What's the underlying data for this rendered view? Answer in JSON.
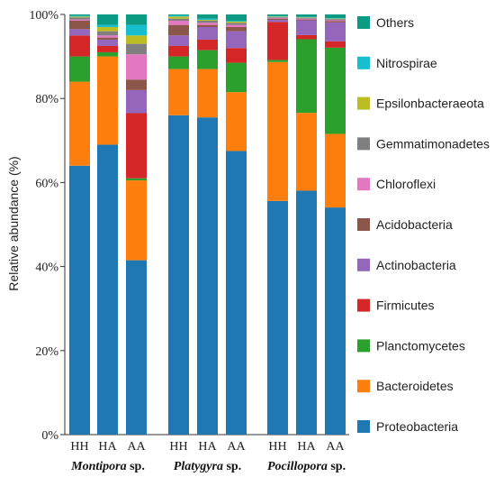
{
  "chart_data": {
    "type": "bar",
    "stacked": true,
    "ylabel": "Relative abundance (%)",
    "ylim": [
      0,
      100
    ],
    "yticks": [
      "0%",
      "20%",
      "40%",
      "60%",
      "80%",
      "100%"
    ],
    "groups": [
      {
        "name_italic": "Montipora",
        "suffix": " sp.",
        "categories": [
          "HH",
          "HA",
          "AA"
        ]
      },
      {
        "name_italic": "Platygyra",
        "suffix": " sp.",
        "categories": [
          "HH",
          "HA",
          "AA"
        ]
      },
      {
        "name_italic": "Pocillopora",
        "suffix": " sp.",
        "categories": [
          "HH",
          "HA",
          "AA"
        ]
      }
    ],
    "series": [
      {
        "name": "Proteobacteria",
        "color": "#1f77b4",
        "values": [
          64,
          69,
          41.5,
          76,
          75.5,
          67.5,
          55.5,
          58,
          54
        ]
      },
      {
        "name": "Bacteroidetes",
        "color": "#ff7f0e",
        "values": [
          20,
          21,
          19,
          11,
          11.5,
          14,
          33,
          18.5,
          17.5
        ]
      },
      {
        "name": "Planctomycetes",
        "color": "#2ca02c",
        "values": [
          6,
          1,
          0.5,
          3,
          4.5,
          7,
          0.5,
          17.5,
          20.5
        ]
      },
      {
        "name": "Firmicutes",
        "color": "#d62728",
        "values": [
          5,
          1.5,
          15.5,
          2.5,
          2.5,
          3.5,
          9,
          1,
          1.5
        ]
      },
      {
        "name": "Actinobacteria",
        "color": "#9467bd",
        "values": [
          1.5,
          1.5,
          5.5,
          2.5,
          3,
          4,
          0.5,
          3.5,
          4.5
        ]
      },
      {
        "name": "Acidobacteria",
        "color": "#8c564b",
        "values": [
          2,
          0.5,
          2.5,
          2.5,
          0.5,
          1,
          0.3,
          0.2,
          0.3
        ]
      },
      {
        "name": "Chloroflexi",
        "color": "#e377c2",
        "values": [
          0.3,
          0.5,
          6,
          1,
          0.5,
          0.5,
          0.2,
          0.2,
          0.2
        ]
      },
      {
        "name": "Gemmatimonadetes",
        "color": "#7f7f7f",
        "values": [
          0.5,
          1,
          2.5,
          0.5,
          0.5,
          0.5,
          0.2,
          0.2,
          0.3
        ]
      },
      {
        "name": "Epsilonbacteraeota",
        "color": "#bcbd22",
        "values": [
          0.2,
          1,
          2,
          0.5,
          0.2,
          0.3,
          0.1,
          0.1,
          0.1
        ]
      },
      {
        "name": "Nitrospirae",
        "color": "#17becf",
        "values": [
          0.2,
          0.5,
          2.5,
          0.3,
          0.3,
          0.2,
          0.1,
          0.1,
          0.1
        ]
      },
      {
        "name": "Others",
        "color": "#0b9a84",
        "values": [
          0.3,
          2.5,
          2.5,
          0.2,
          1,
          1.5,
          0.4,
          0.6,
          0.9
        ]
      }
    ],
    "legend": "right"
  }
}
